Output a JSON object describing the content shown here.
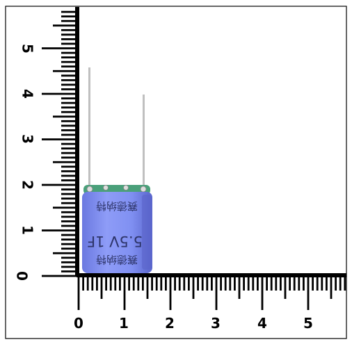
{
  "vertical_ruler": {
    "labels": [
      "0",
      "1",
      "2",
      "3",
      "4",
      "5"
    ]
  },
  "horizontal_ruler": {
    "labels": [
      "0",
      "1",
      "2",
      "3",
      "4",
      "5"
    ]
  },
  "capacitor": {
    "rating": "5.5V 1F",
    "brand_top": "赛德纳特",
    "brand_bottom": "赛德纳特",
    "body_color": "#7f8ef2",
    "sleeve_dark": "#5a63c9",
    "lead_color": "#c8c8c8",
    "pcb_color": "#4aa07a"
  },
  "colors": {
    "ruler_ink": "#000000",
    "background": "#ffffff"
  }
}
